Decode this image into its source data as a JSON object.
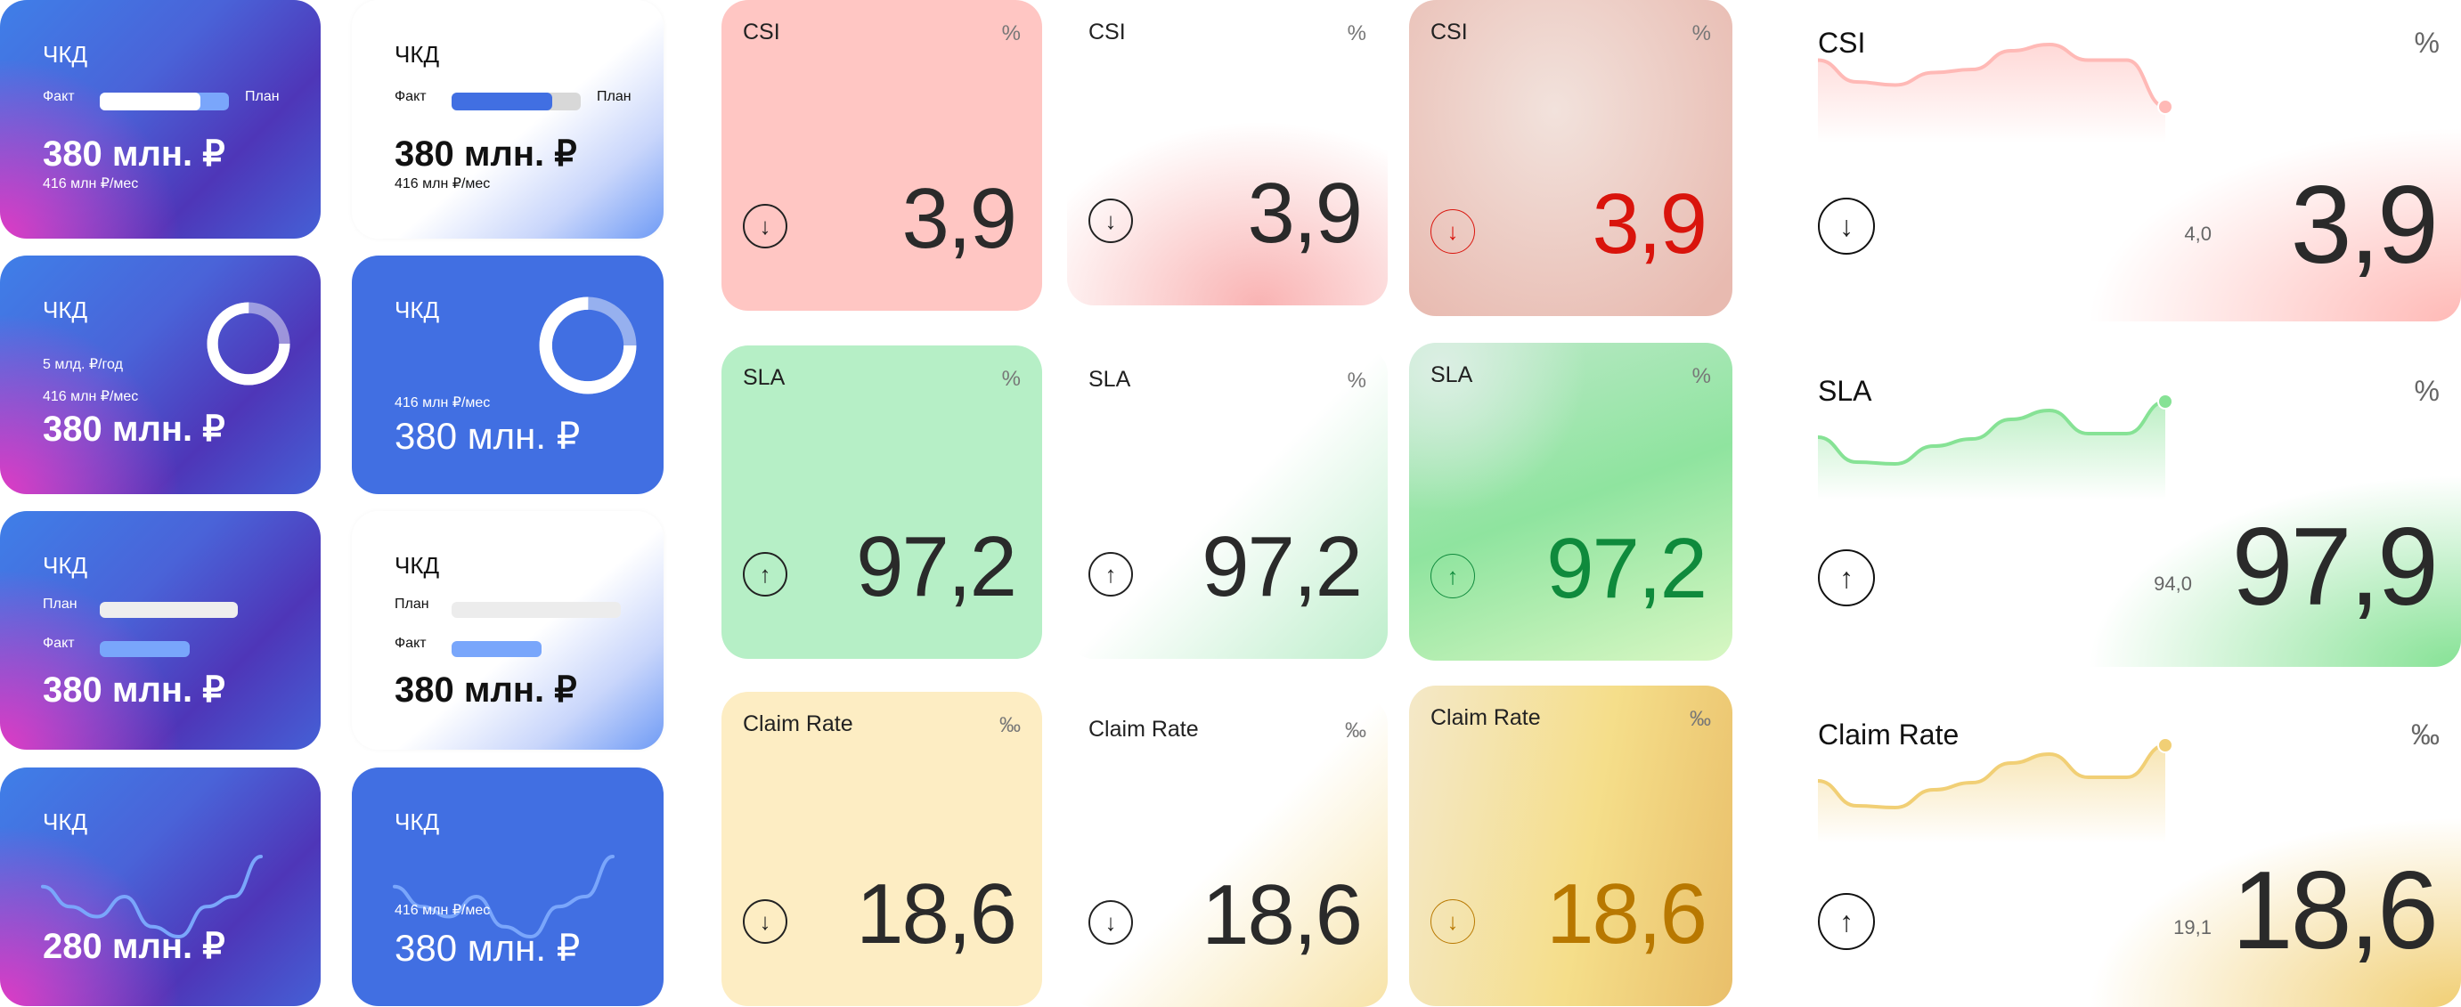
{
  "chkd_cards": [
    {
      "variant": "gradient",
      "title": "ЧКД",
      "fact_label": "Факт",
      "plan_label": "План",
      "progress": 0.78,
      "value": "380 млн. ₽",
      "sub": "416 млн ₽/мес"
    },
    {
      "variant": "white",
      "title": "ЧКД",
      "fact_label": "Факт",
      "plan_label": "План",
      "progress": 0.78,
      "value": "380 млн. ₽",
      "sub": "416 млн ₽/мес"
    },
    {
      "variant": "gradient",
      "title": "ЧКД",
      "year_label": "5 млд. ₽/год",
      "sub": "416 млн ₽/мес",
      "value": "380 млн. ₽",
      "progress": 0.75
    },
    {
      "variant": "blue",
      "title": "ЧКД",
      "sub": "416 млн ₽/мес",
      "value": "380 млн. ₽",
      "progress": 0.75
    },
    {
      "variant": "gradient",
      "title": "ЧКД",
      "plan_label": "План",
      "fact_label": "Факт",
      "progress": 0.65,
      "value": "380 млн. ₽"
    },
    {
      "variant": "white",
      "title": "ЧКД",
      "plan_label": "План",
      "fact_label": "Факт",
      "progress": 0.53,
      "value": "380 млн. ₽"
    },
    {
      "variant": "gradient",
      "title": "ЧКД",
      "value": "280 млн. ₽",
      "sparkline": [
        5,
        3,
        2,
        4,
        1,
        0,
        3,
        4,
        8
      ]
    },
    {
      "variant": "blue",
      "title": "ЧКД",
      "sub": "416 млн ₽/мес",
      "value": "380 млн. ₽",
      "sparkline": [
        5,
        3,
        2,
        4,
        1,
        0,
        3,
        4,
        8
      ]
    }
  ],
  "metric_cards": [
    {
      "style": "solid",
      "title": "CSI",
      "unit": "%",
      "value": "3,9",
      "trend": "down",
      "color": "#ffc6c3"
    },
    {
      "style": "white",
      "title": "CSI",
      "unit": "%",
      "value": "3,9",
      "trend": "down",
      "color": "#f9b3b3"
    },
    {
      "style": "tinted",
      "title": "CSI",
      "unit": "%",
      "value": "3,9",
      "trend": "down",
      "color": "#e8bab0",
      "accent": "#d9140c"
    },
    {
      "style": "solid",
      "title": "SLA",
      "unit": "%",
      "value": "97,2",
      "trend": "up",
      "color": "#b6efc6"
    },
    {
      "style": "white",
      "title": "SLA",
      "unit": "%",
      "value": "97,2",
      "trend": "up",
      "color": "#bdeecb"
    },
    {
      "style": "tinted",
      "title": "SLA",
      "unit": "%",
      "value": "97,2",
      "trend": "up",
      "color": "#8fe49f",
      "accent": "#0f8a3c"
    },
    {
      "style": "solid",
      "title": "Claim Rate",
      "unit": "‰",
      "value": "18,6",
      "trend": "down",
      "color": "#fdedc3"
    },
    {
      "style": "white",
      "title": "Claim Rate",
      "unit": "‰",
      "value": "18,6",
      "trend": "down",
      "color": "#f7e3a8"
    },
    {
      "style": "tinted",
      "title": "Claim Rate",
      "unit": "‰",
      "value": "18,6",
      "trend": "down",
      "color": "#f5de8a",
      "accent": "#b87800"
    }
  ],
  "large_cards": [
    {
      "title": "CSI",
      "unit": "%",
      "value": "3,9",
      "reference": "4,0",
      "trend": "down",
      "color": "#ffb9b6",
      "sparkline": [
        5,
        3.6,
        3.4,
        4.2,
        4.4,
        5.6,
        6,
        5,
        5,
        2
      ]
    },
    {
      "title": "SLA",
      "unit": "%",
      "value": "97,9",
      "reference": "94,0",
      "trend": "up",
      "color": "#86e295",
      "sparkline": [
        4,
        2.6,
        2.5,
        3.5,
        3.9,
        5,
        5.5,
        4.2,
        4.2,
        6
      ]
    },
    {
      "title": "Claim Rate",
      "unit": "‰",
      "value": "18,6",
      "reference": "19,1",
      "trend": "up",
      "color": "#f1cf75",
      "sparkline": [
        4,
        2.6,
        2.5,
        3.5,
        3.9,
        5,
        5.5,
        4.2,
        4.2,
        6
      ]
    }
  ],
  "icons": {
    "down": "arrow-down-circle-icon",
    "up": "arrow-up-circle-icon"
  }
}
